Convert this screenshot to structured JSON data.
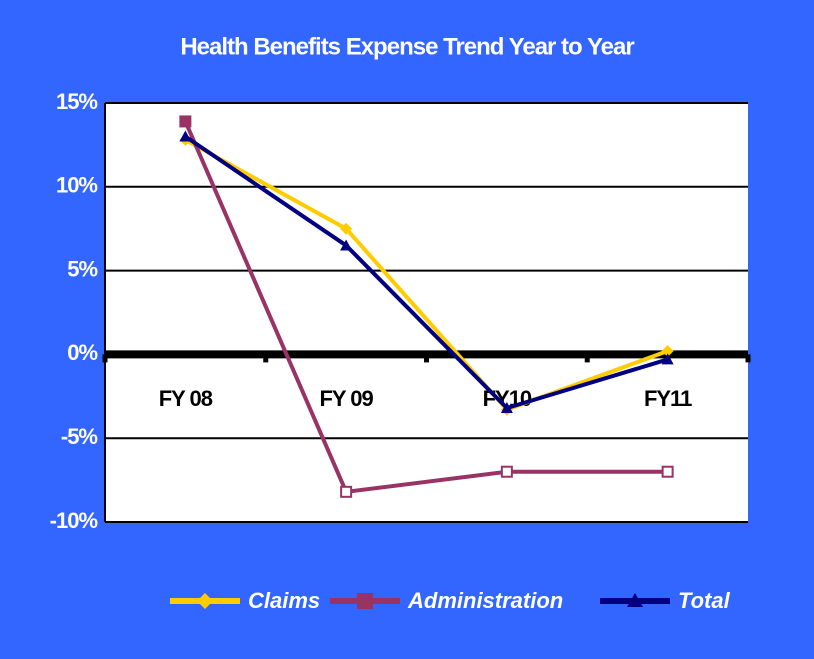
{
  "chart_data": {
    "type": "line",
    "title": "Health Benefits Expense Trend Year to Year",
    "categories": [
      "FY 08",
      "FY 09",
      "FY10",
      "FY11"
    ],
    "series": [
      {
        "name": "Claims",
        "color": "#ffcc00",
        "values": [
          12.8,
          7.5,
          -3.3,
          0.2
        ]
      },
      {
        "name": "Administration",
        "color": "#993366",
        "values": [
          13.9,
          -8.2,
          -7.0,
          -7.0
        ]
      },
      {
        "name": "Total",
        "color": "#000080",
        "values": [
          13.0,
          6.5,
          -3.2,
          -0.3
        ]
      }
    ],
    "ylim": [
      -10,
      15
    ],
    "yticks": [
      {
        "value": -10,
        "label": "-10%"
      },
      {
        "value": -5,
        "label": "-5%"
      },
      {
        "value": 0,
        "label": "0%"
      },
      {
        "value": 5,
        "label": "5%"
      },
      {
        "value": 10,
        "label": "10%"
      },
      {
        "value": 15,
        "label": "15%"
      }
    ],
    "grid": true,
    "legend": "bottom",
    "background": "#3366ff"
  }
}
